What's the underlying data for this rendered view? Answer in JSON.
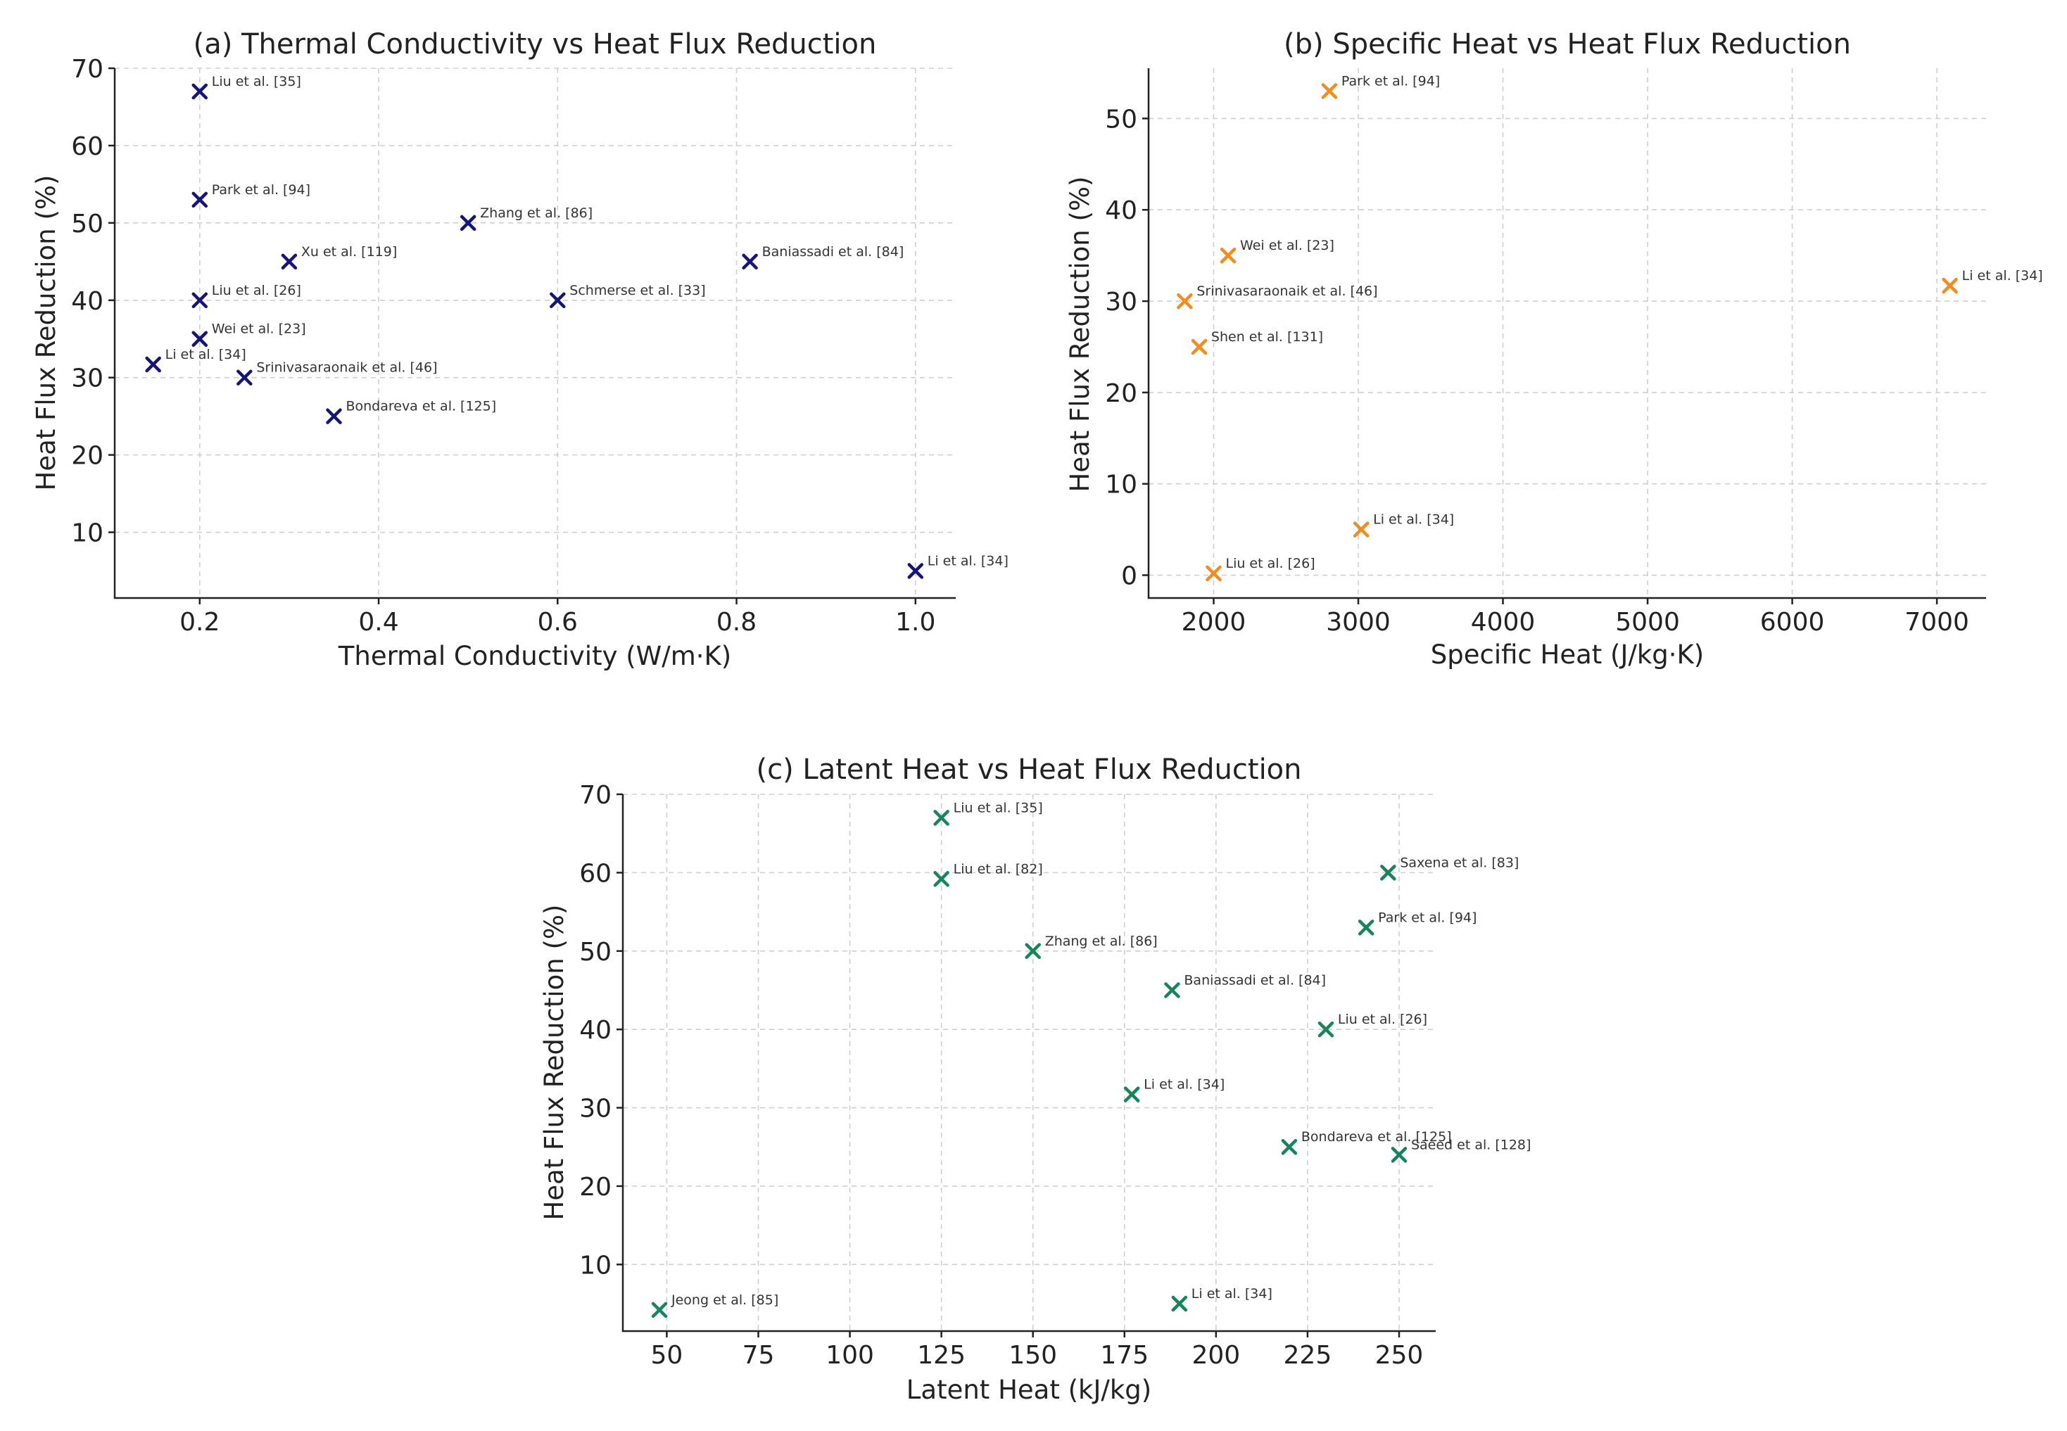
{
  "chart_data": [
    {
      "type": "scatter",
      "title": "(a) Thermal Conductivity vs Heat Flux Reduction",
      "xlabel": "Thermal Conductivity (W/m·K)",
      "ylabel": "Heat Flux Reduction (%)",
      "xlim": [
        0.105,
        1.045
      ],
      "ylim": [
        1.5,
        70
      ],
      "xticks": [
        0.2,
        0.4,
        0.6,
        0.8,
        1.0
      ],
      "xtick_labels": [
        "0.2",
        "0.4",
        "0.6",
        "0.8",
        "1.0"
      ],
      "yticks": [
        10,
        20,
        30,
        40,
        50,
        60,
        70
      ],
      "ytick_labels": [
        "10",
        "20",
        "30",
        "40",
        "50",
        "60",
        "70"
      ],
      "color": "#14147a",
      "grid": true,
      "points": [
        {
          "x": 0.2,
          "y": 67,
          "label": "Liu et al. [35]"
        },
        {
          "x": 0.2,
          "y": 53,
          "label": "Park et al. [94]"
        },
        {
          "x": 0.5,
          "y": 50,
          "label": "Zhang et al. [86]"
        },
        {
          "x": 0.3,
          "y": 45,
          "label": "Xu et al. [119]"
        },
        {
          "x": 0.815,
          "y": 45,
          "label": "Baniassadi et al. [84]"
        },
        {
          "x": 0.2,
          "y": 40,
          "label": "Liu et al. [26]"
        },
        {
          "x": 0.6,
          "y": 40,
          "label": "Schmerse et al. [33]"
        },
        {
          "x": 0.2,
          "y": 35,
          "label": "Wei et al. [23]"
        },
        {
          "x": 0.148,
          "y": 31.7,
          "label": "Li et al. [34]"
        },
        {
          "x": 0.25,
          "y": 30,
          "label": "Srinivasaraonaik et al. [46]"
        },
        {
          "x": 0.35,
          "y": 25,
          "label": "Bondareva et al. [125]"
        },
        {
          "x": 1.0,
          "y": 5,
          "label": "Li et al. [34]"
        }
      ]
    },
    {
      "type": "scatter",
      "title": "(b) Specific Heat vs Heat Flux Reduction",
      "xlabel": "Specific Heat (J/kg·K)",
      "ylabel": "Heat Flux Reduction (%)",
      "xlim": [
        1550,
        7340
      ],
      "ylim": [
        -2.5,
        55.5
      ],
      "xticks": [
        2000,
        3000,
        4000,
        5000,
        6000,
        7000
      ],
      "xtick_labels": [
        "2000",
        "3000",
        "4000",
        "5000",
        "6000",
        "7000"
      ],
      "yticks": [
        0,
        10,
        20,
        30,
        40,
        50
      ],
      "ytick_labels": [
        "0",
        "10",
        "20",
        "30",
        "40",
        "50"
      ],
      "color": "#f28c1e",
      "grid": true,
      "points": [
        {
          "x": 2800,
          "y": 53,
          "label": "Park et al. [94]"
        },
        {
          "x": 2100,
          "y": 35,
          "label": "Wei et al. [23]"
        },
        {
          "x": 7090,
          "y": 31.7,
          "label": "Li et al. [34]"
        },
        {
          "x": 1800,
          "y": 30,
          "label": "Srinivasaraonaik et al. [46]"
        },
        {
          "x": 1900,
          "y": 25,
          "label": "Shen et al. [131]"
        },
        {
          "x": 3020,
          "y": 5,
          "label": "Li et al. [34]"
        },
        {
          "x": 2000,
          "y": 0.2,
          "label": "Liu et al. [26]"
        }
      ]
    },
    {
      "type": "scatter",
      "title": "(c) Latent Heat vs Heat Flux Reduction",
      "xlabel": "Latent Heat (kJ/kg)",
      "ylabel": "Heat Flux Reduction (%)",
      "xlim": [
        38,
        260
      ],
      "ylim": [
        1.5,
        70
      ],
      "xticks": [
        50,
        75,
        100,
        125,
        150,
        175,
        200,
        225,
        250
      ],
      "xtick_labels": [
        "50",
        "75",
        "100",
        "125",
        "150",
        "175",
        "200",
        "225",
        "250"
      ],
      "yticks": [
        10,
        20,
        30,
        40,
        50,
        60,
        70
      ],
      "ytick_labels": [
        "10",
        "20",
        "30",
        "40",
        "50",
        "60",
        "70"
      ],
      "color": "#15855a",
      "grid": true,
      "points": [
        {
          "x": 125,
          "y": 67,
          "label": "Liu et al. [35]"
        },
        {
          "x": 125,
          "y": 59.2,
          "label": "Liu et al. [82]"
        },
        {
          "x": 247,
          "y": 60,
          "label": "Saxena et al. [83]"
        },
        {
          "x": 241,
          "y": 53,
          "label": "Park et al. [94]"
        },
        {
          "x": 150,
          "y": 50,
          "label": "Zhang et al. [86]"
        },
        {
          "x": 188,
          "y": 45,
          "label": "Baniassadi et al. [84]"
        },
        {
          "x": 230,
          "y": 40,
          "label": "Liu et al. [26]"
        },
        {
          "x": 177,
          "y": 31.7,
          "label": "Li et al. [34]"
        },
        {
          "x": 220,
          "y": 25,
          "label": "Bondareva et al. [125]"
        },
        {
          "x": 250,
          "y": 24,
          "label": "Saeed et al. [128]"
        },
        {
          "x": 48,
          "y": 4.2,
          "label": "Jeong et al. [85]"
        },
        {
          "x": 190,
          "y": 5,
          "label": "Li et al. [34]"
        }
      ]
    }
  ]
}
